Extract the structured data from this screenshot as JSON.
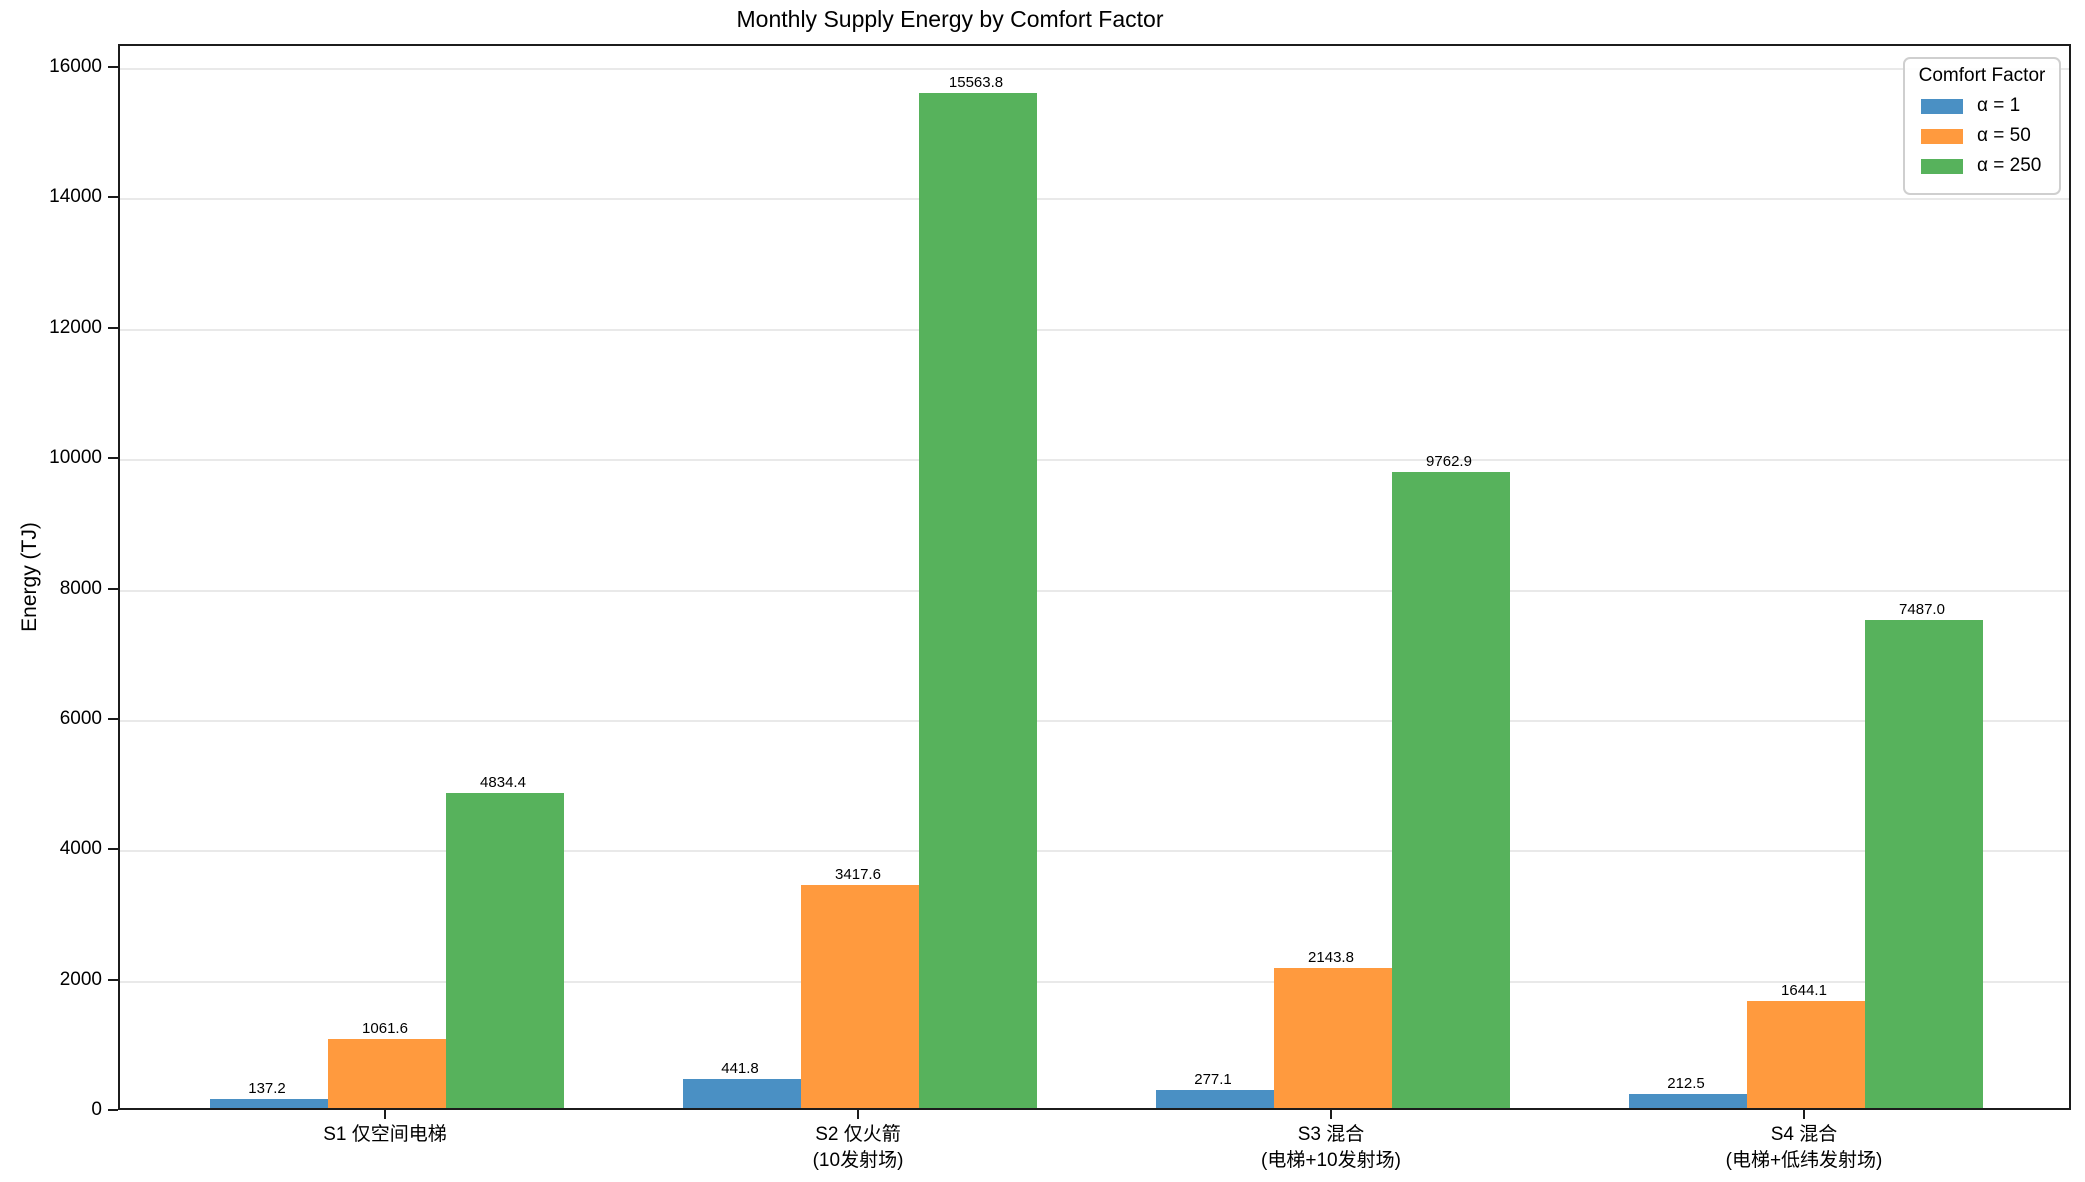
{
  "chart_data": {
    "type": "bar",
    "title": "Monthly Supply Energy by Comfort Factor",
    "xlabel": "",
    "ylabel": "Energy (TJ)",
    "ylim": [
      0,
      16000
    ],
    "ytick_step": 2000,
    "grid": "horizontal-light-gray",
    "legend_title": "Comfort Factor",
    "legend_position": "upper right",
    "categories": [
      "S1 仅空间电梯",
      "S2 仅火箭\n(10发射场)",
      "S3 混合\n(电梯+10发射场)",
      "S4 混合\n(电梯+低纬发射场)"
    ],
    "series": [
      {
        "name": "α = 1",
        "color": "#4a90c4",
        "values": [
          137.2,
          441.8,
          277.1,
          212.5
        ]
      },
      {
        "name": "α = 50",
        "color": "#ff9a3e",
        "values": [
          1061.6,
          3417.6,
          2143.8,
          1644.1
        ]
      },
      {
        "name": "α = 250",
        "color": "#57b25c",
        "values": [
          4834.4,
          15563.8,
          9762.9,
          7487.0
        ]
      }
    ],
    "value_labels_decimals": 1
  },
  "colors": {
    "spine": "#1c1c1c",
    "gridline": "#e9e9e9",
    "background": "#ffffff",
    "text": "#000000",
    "legend_border": "#cfcfcf"
  }
}
